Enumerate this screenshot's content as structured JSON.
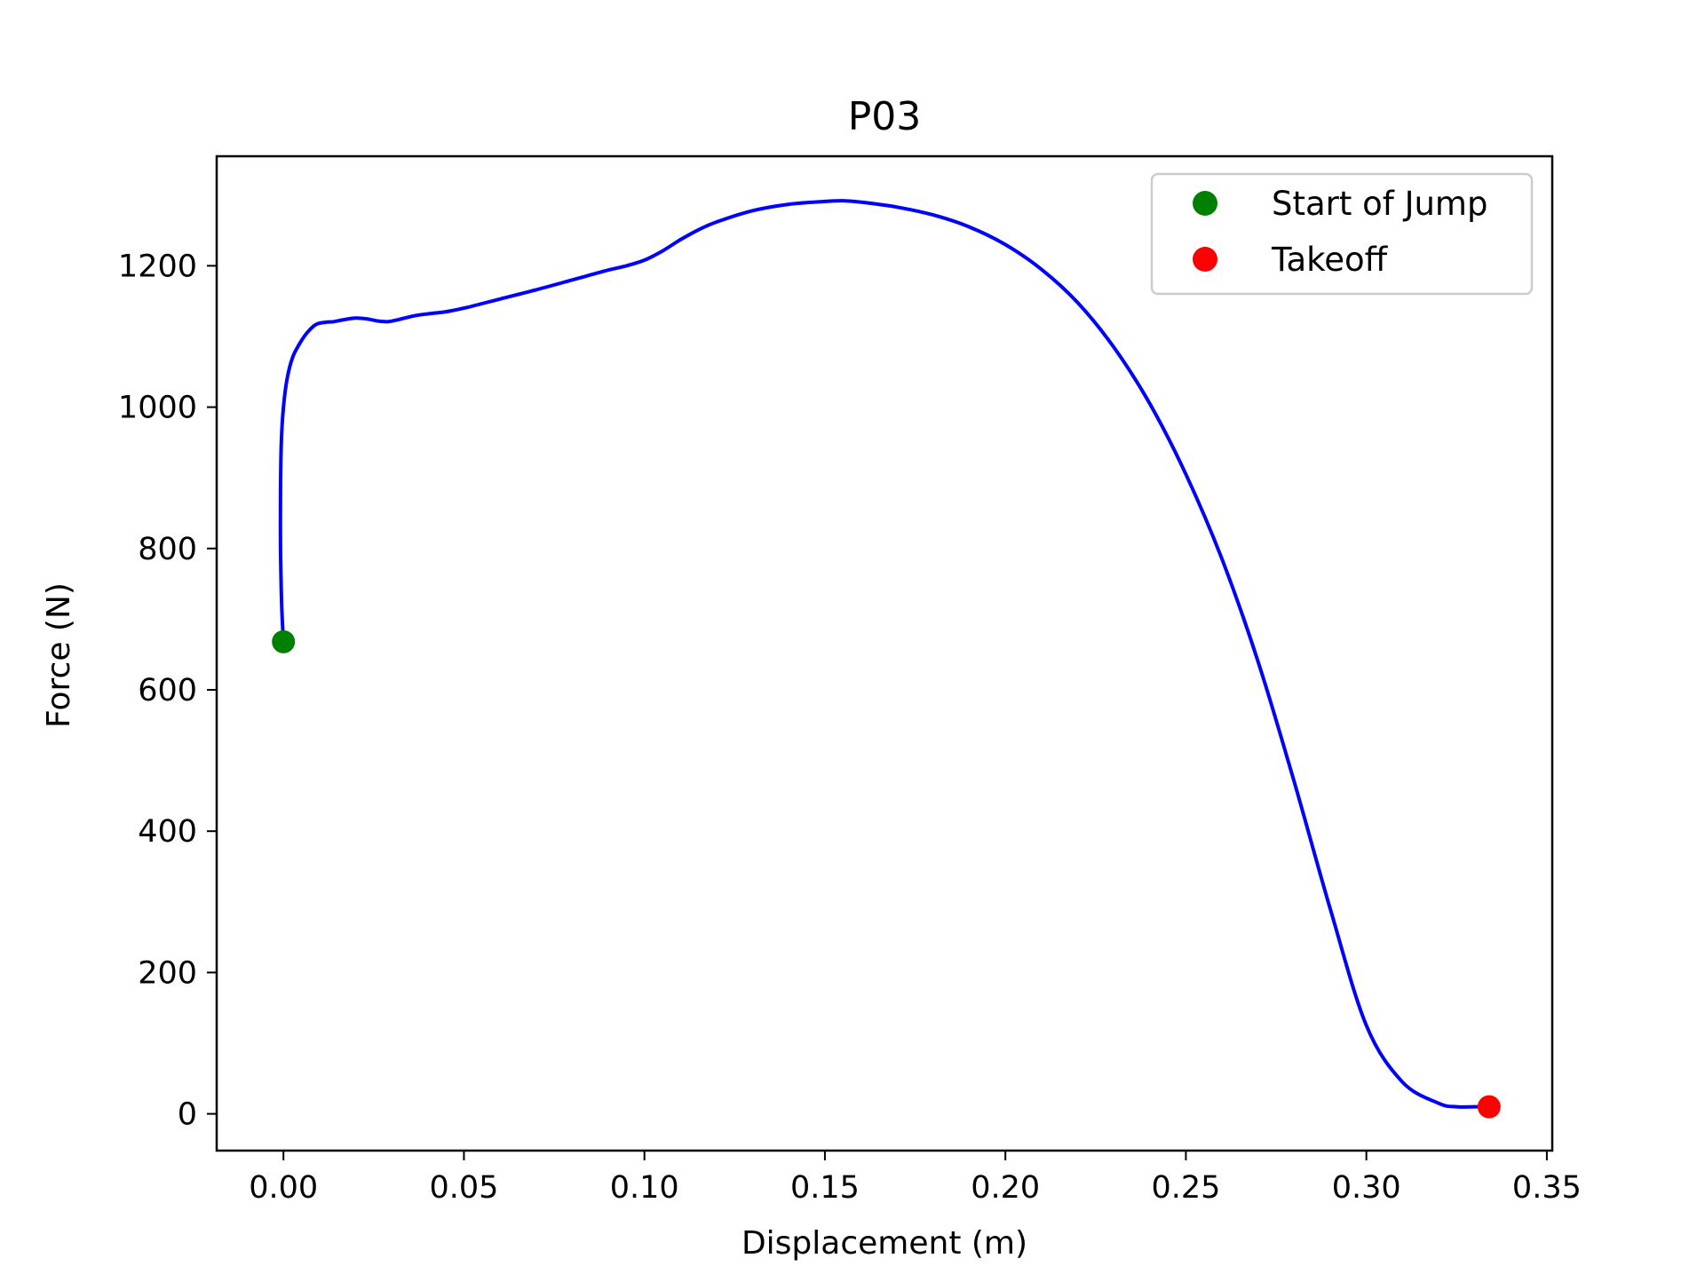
{
  "chart_data": {
    "type": "line",
    "title": "P03",
    "xlabel": "Displacement (m)",
    "ylabel": "Force (N)",
    "xlim": [
      -0.0185,
      0.3515
    ],
    "ylim": [
      -52,
      1355
    ],
    "x_ticks": [
      0.0,
      0.05,
      0.1,
      0.15,
      0.2,
      0.25,
      0.3,
      0.35
    ],
    "x_tick_labels": [
      "0.00",
      "0.05",
      "0.10",
      "0.15",
      "0.20",
      "0.25",
      "0.30",
      "0.35"
    ],
    "y_ticks": [
      0,
      200,
      400,
      600,
      800,
      1000,
      1200
    ],
    "y_tick_labels": [
      "0",
      "200",
      "400",
      "600",
      "800",
      "1000",
      "1200"
    ],
    "grid": false,
    "legend_position": "top-right",
    "series": [
      {
        "color": "#0000ff",
        "x": [
          0.0,
          -0.0005,
          -0.0008,
          -0.0008,
          -0.0006,
          0.0,
          0.001,
          0.0025,
          0.0045,
          0.0065,
          0.009,
          0.0115,
          0.014,
          0.017,
          0.02,
          0.023,
          0.026,
          0.029,
          0.032,
          0.036,
          0.04,
          0.045,
          0.05,
          0.06,
          0.07,
          0.08,
          0.085,
          0.09,
          0.095,
          0.1,
          0.105,
          0.11,
          0.115,
          0.12,
          0.13,
          0.14,
          0.15,
          0.155,
          0.16,
          0.17,
          0.18,
          0.19,
          0.2,
          0.21,
          0.22,
          0.23,
          0.24,
          0.25,
          0.26,
          0.27,
          0.28,
          0.29,
          0.3,
          0.31,
          0.32,
          0.325,
          0.33,
          0.334
        ],
        "y": [
          668,
          720,
          800,
          880,
          950,
          1000,
          1040,
          1070,
          1090,
          1105,
          1117,
          1120,
          1121,
          1124,
          1126,
          1125,
          1122,
          1121,
          1124,
          1129,
          1132,
          1135,
          1140,
          1153,
          1166,
          1180,
          1187,
          1194,
          1200,
          1208,
          1221,
          1237,
          1251,
          1262,
          1278,
          1287,
          1291,
          1292,
          1290,
          1283,
          1272,
          1255,
          1230,
          1195,
          1148,
          1085,
          1005,
          905,
          785,
          640,
          470,
          290,
          125,
          45,
          15,
          10,
          10,
          10
        ]
      },
      {
        "name": "Start of Jump",
        "type": "scatter",
        "color": "#008000",
        "x": [
          0.0
        ],
        "y": [
          668
        ]
      },
      {
        "name": "Takeoff",
        "type": "scatter",
        "color": "#ff0000",
        "x": [
          0.334
        ],
        "y": [
          10
        ]
      }
    ]
  }
}
